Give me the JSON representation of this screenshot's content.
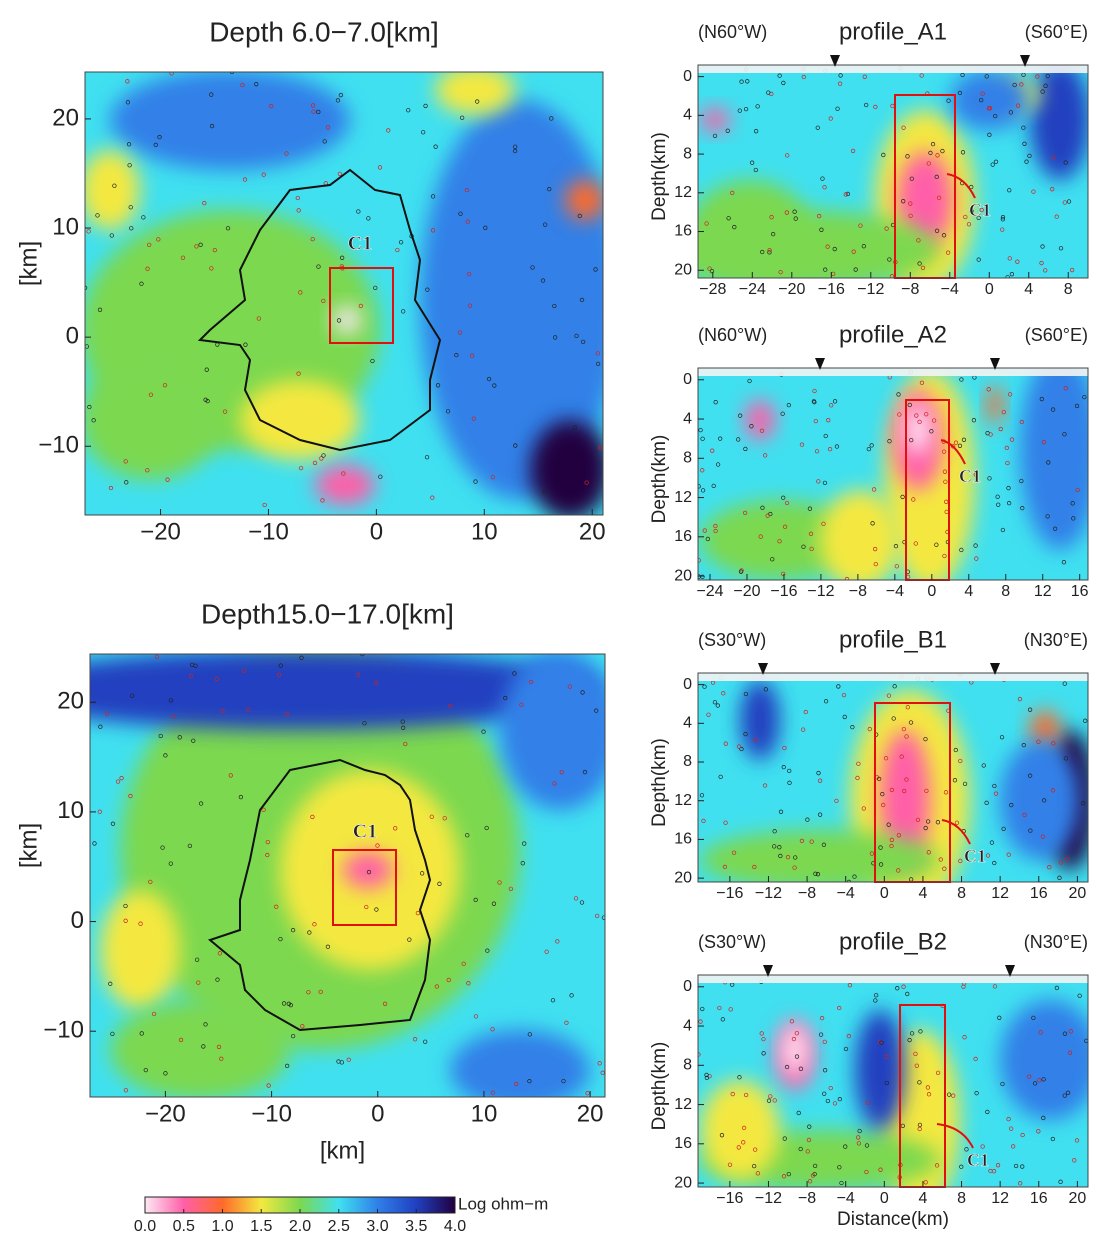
{
  "chart_data": [
    {
      "type": "map",
      "title": "Depth 6.0−7.0[km]",
      "ylabel": "[km]",
      "annotation": "C1",
      "xlim": [
        -27,
        21
      ],
      "ylim": [
        -16.3,
        24.3
      ],
      "xticks": [
        {
          "value": -20,
          "label": "−20"
        },
        {
          "value": -10,
          "label": "−10"
        },
        0,
        10,
        20
      ],
      "yticks": [
        {
          "value": -10,
          "label": "−10"
        },
        0,
        10,
        20
      ]
    },
    {
      "type": "map",
      "title": "Depth15.0−17.0[km]",
      "xlabel": "[km]",
      "ylabel": "[km]",
      "annotation": "C1",
      "xlim": [
        -27.1,
        21.4
      ],
      "ylim": [
        -16,
        24.4
      ],
      "xticks": [
        {
          "value": -20,
          "label": "−20"
        },
        {
          "value": -10,
          "label": "−10"
        },
        0,
        10,
        20
      ],
      "yticks": [
        {
          "value": -10,
          "label": "−10"
        },
        0,
        10,
        20
      ]
    },
    {
      "type": "profile",
      "title": "profile_A1",
      "left_label": "(N60°W)",
      "right_label": "(S60°E)",
      "ylabel": "Depth(km)",
      "annotation": "C1",
      "xlim": [
        -29.5,
        10
      ],
      "ylim": [
        20.8,
        -1.2
      ],
      "xticks": [
        {
          "value": -28,
          "label": "−28"
        },
        {
          "value": -24,
          "label": "−24"
        },
        {
          "value": -20,
          "label": "−20"
        },
        {
          "value": -16,
          "label": "−16"
        },
        {
          "value": -12,
          "label": "−12"
        },
        {
          "value": -8,
          "label": "−8"
        },
        {
          "value": -4,
          "label": "−4"
        },
        0,
        4,
        8
      ],
      "yticks": [
        0,
        4,
        8,
        12,
        16,
        20
      ]
    },
    {
      "type": "profile",
      "title": "profile_A2",
      "left_label": "(N60°W)",
      "right_label": "(S60°E)",
      "ylabel": "Depth(km)",
      "annotation": "C1",
      "xlim": [
        -25.3,
        16.9
      ],
      "ylim": [
        20.4,
        -1.2
      ],
      "xticks": [
        {
          "value": -24,
          "label": "−24"
        },
        {
          "value": -20,
          "label": "−20"
        },
        {
          "value": -16,
          "label": "−16"
        },
        {
          "value": -12,
          "label": "−12"
        },
        {
          "value": -8,
          "label": "−8"
        },
        {
          "value": -4,
          "label": "−4"
        },
        0,
        4,
        8,
        12,
        16
      ],
      "yticks": [
        0,
        4,
        8,
        12,
        16,
        20
      ]
    },
    {
      "type": "profile",
      "title": "profile_B1",
      "left_label": "(S30°W)",
      "right_label": "(N30°E)",
      "ylabel": "Depth(km)",
      "annotation": "C1",
      "xlim": [
        -19.3,
        21.1
      ],
      "ylim": [
        20.4,
        -1.2
      ],
      "xticks": [
        {
          "value": -16,
          "label": "−16"
        },
        {
          "value": -12,
          "label": "−12"
        },
        {
          "value": -8,
          "label": "−8"
        },
        {
          "value": -4,
          "label": "−4"
        },
        0,
        4,
        8,
        12,
        16,
        20
      ],
      "yticks": [
        0,
        4,
        8,
        12,
        16,
        20
      ]
    },
    {
      "type": "profile",
      "title": "profile_B2",
      "left_label": "(S30°W)",
      "right_label": "(N30°E)",
      "ylabel": "Depth(km)",
      "xlabel": "Distance(km)",
      "annotation": "C1",
      "xlim": [
        -19.3,
        21.1
      ],
      "ylim": [
        20.4,
        -1.2
      ],
      "xticks": [
        {
          "value": -16,
          "label": "−16"
        },
        {
          "value": -12,
          "label": "−12"
        },
        {
          "value": -8,
          "label": "−8"
        },
        {
          "value": -4,
          "label": "−4"
        },
        0,
        4,
        8,
        12,
        16,
        20
      ],
      "yticks": [
        0,
        4,
        8,
        12,
        16,
        20
      ]
    },
    {
      "type": "colorbar",
      "label": "Log ohm−m",
      "xlim": [
        0,
        4
      ],
      "colors": [
        "#fde8f4",
        "#ff5fa8",
        "#ff6a2a",
        "#f4e840",
        "#7cd850",
        "#40e0f0",
        "#3080e8",
        "#2040c0",
        "#200040"
      ],
      "xticks": [
        {
          "value": 0,
          "label": "0.0"
        },
        {
          "value": 0.5,
          "label": "0.5"
        },
        {
          "value": 1,
          "label": "1.0"
        },
        {
          "value": 1.5,
          "label": "1.5"
        },
        {
          "value": 2,
          "label": "2.0"
        },
        {
          "value": 2.5,
          "label": "2.5"
        },
        {
          "value": 3,
          "label": "3.0"
        },
        {
          "value": 3.5,
          "label": "3.5"
        },
        {
          "value": 4,
          "label": "4.0"
        }
      ]
    }
  ]
}
